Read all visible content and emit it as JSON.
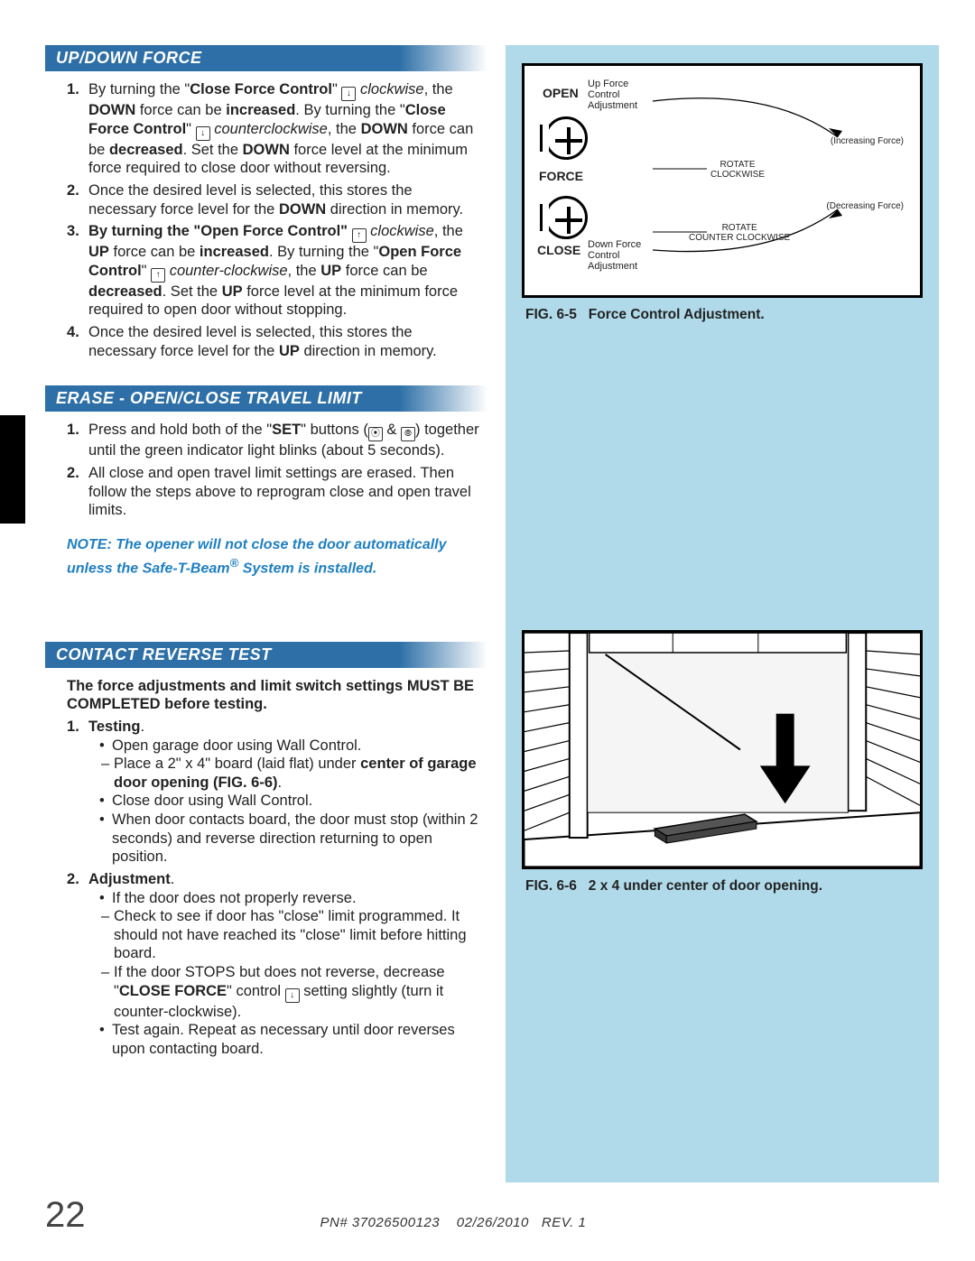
{
  "sections": {
    "s1": {
      "title": "UP/DOWN FORCE",
      "steps": [
        "By turning the \"<b>Close Force Control</b>\" <span class='icon-box'>↓</span> <i>clock­wise</i>, the <b>DOWN</b> force can be <b>increased</b>. By turning the \"<b>Close Force Control</b>\" <span class='icon-box'>↓</span> <i>counter­clockwise</i>, the <b>DOWN</b> force can be <b>decreased</b>. Set the <b>DOWN</b> force level at the minimum force required to close door without reversing.",
        "Once the desired level is selected, this stores the necessary force level for the <b>DOWN</b> direction in memory.",
        "<b>By turning the \"Open Force Control\"</b> <span class='icon-box'>↑</span> <i>clockwise</i>, the <b>UP</b> force can be <b>increased</b>. By turning the \"<b>Open Force Control</b>\" <span class='icon-box'>↑</span> <i>counter-clockwise</i>, the <b>UP</b> force can be <b>decreased</b>. Set the <b>UP</b> force level at the minimum force required to open door without stopping.",
        "Once the desired level is selected, this stores the necessary force level for the <b>UP</b> direction in memory."
      ]
    },
    "s2": {
      "title": "ERASE - OPEN/CLOSE TRAVEL LIMIT",
      "steps": [
        "Press and hold both of the \"<b>SET</b>\" buttons (<span class='icon-box'>⦿</span> & <span class='icon-box'>⦾</span>) together until the green indicator light blinks (about 5 seconds).",
        "All close and open travel limit settings are erased. Then follow the steps above to reprogram close and open travel limits."
      ],
      "note": "NOTE: The opener will not close the door automatically unless the Safe-T-Beam<sup>®</sup> System is installed."
    },
    "s3": {
      "title": "CONTACT REVERSE TEST",
      "intro": "The force adjustments and limit switch settings MUST BE COMPLETED before testing.",
      "step1_label": "Testing",
      "step1_bullets": [
        "Open garage door using Wall Control.",
        "Close door using Wall Control.",
        "When door contacts board, the door must stop (within 2 seconds) and reverse direction returning to open position."
      ],
      "step1_sub": "Place a 2\" x 4\" board (laid flat) under <b>center of garage door opening (FIG. 6-6)</b>.",
      "step2_label": "Adjustment",
      "step2_b1": "If the door does not properly reverse.",
      "step2_subs": [
        "Check to see if door has \"close\" limit programmed. It should not have reached its \"close\" limit before hitting board.",
        "If the door STOPS but does not reverse, decrease \"<b>CLOSE FORCE</b>\" control <span class='icon-box'>↓</span> setting slightly (turn it counter-clockwise)."
      ],
      "step2_b2": "Test again. Repeat as necessary until door reverses upon contacting board."
    }
  },
  "figures": {
    "f1": {
      "caption_no": "FIG. 6-5",
      "caption": "Force Control Adjustment",
      "open_label": "OPEN",
      "force_label": "FORCE",
      "close_label": "CLOSE",
      "up_text": "Up Force\nControl\nAdjustment",
      "down_text": "Down Force\nControl\nAdjustment",
      "inc": "(Increasing Force)",
      "dec": "(Decreasing Force)",
      "rot_cw": "ROTATE\nCLOCKWISE",
      "rot_ccw": "ROTATE\nCOUNTER CLOCKWISE"
    },
    "f2": {
      "caption_no": "FIG. 6-6",
      "caption": "2 x 4 under center of door opening."
    }
  },
  "footer": {
    "page": "22",
    "pn": "PN# 37026500123",
    "date": "02/26/2010",
    "rev": "REV. 1"
  },
  "colors": {
    "header_blue": "#2d6fa6",
    "panel_blue": "#b0daea",
    "note_blue": "#1e7fc1"
  }
}
